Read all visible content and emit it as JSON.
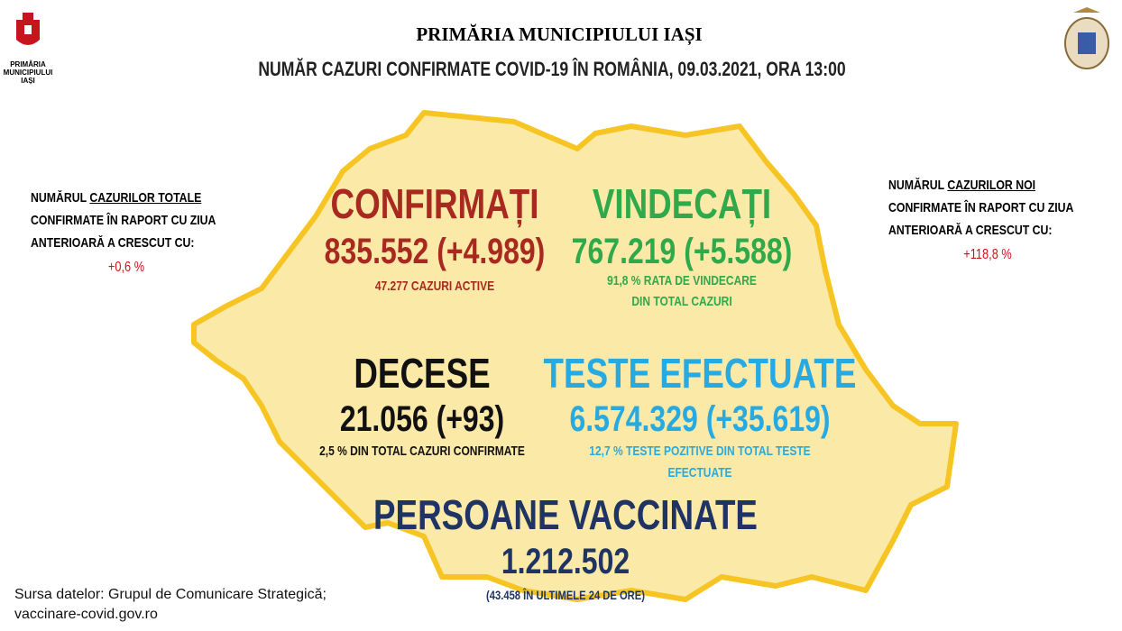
{
  "header": {
    "title": "PRIMĂRIA MUNICIPIULUI IAȘI",
    "subtitle": "NUMĂR CAZURI CONFIRMATE COVID-19 ÎN ROMÂNIA, 09.03.2021, ORA 13:00",
    "logo_caption": [
      "PRIMĂRIA",
      "MUNICIPIULUI",
      "IAȘI"
    ]
  },
  "left_note": {
    "lead": "NUMĂRUL",
    "underlined": "CAZURILOR TOTALE",
    "lines": [
      "CONFIRMATE  ÎN  RAPORT CU ZIUA",
      "ANTERIOARĂ A CRESCUT CU:"
    ],
    "value": "+0,6 %"
  },
  "right_note": {
    "lead": "NUMĂRUL",
    "underlined": "CAZURILOR NOI",
    "lines": [
      "CONFIRMATE  ÎN  RAPORT CU ZIUA",
      "ANTERIOARĂ A CRESCUT CU:"
    ],
    "value": "+118,8 %"
  },
  "confirmed": {
    "title": "CONFIRMAȚI",
    "value": "835.552 (+4.989)",
    "note": [
      "47.277 CAZURI ACTIVE"
    ]
  },
  "recovered": {
    "title": "VINDECAȚI",
    "value": "767.219 (+5.588)",
    "note": [
      "91,8 % RATA DE VINDECARE",
      "DIN TOTAL CAZURI"
    ]
  },
  "deaths": {
    "title": "DECESE",
    "value": "21.056 (+93)",
    "note": [
      "2,5 % DIN TOTAL CAZURI CONFIRMATE"
    ]
  },
  "tests": {
    "title": "TESTE EFECTUATE",
    "value": "6.574.329 (+35.619)",
    "note": [
      "12,7 % TESTE POZITIVE DIN TOTAL TESTE",
      "EFECTUATE"
    ]
  },
  "vaccinated": {
    "title": "PERSOANE VACCINATE",
    "value": "1.212.502",
    "note": [
      "(43.458  ÎN ULTIMELE 24 DE ORE)"
    ]
  },
  "source": [
    "Sursa datelor: Grupul de Comunicare Strategică;",
    "vaccinare-covid.gov.ro"
  ]
}
